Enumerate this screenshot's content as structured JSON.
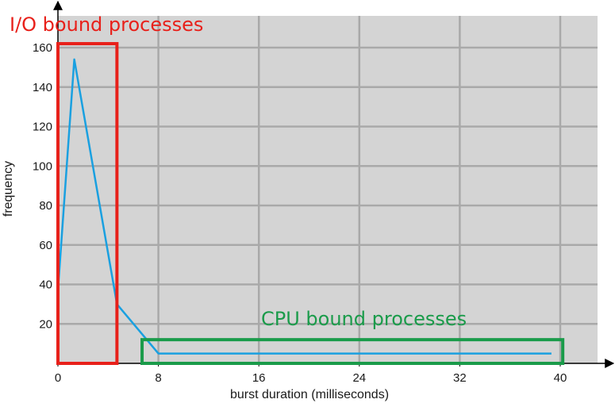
{
  "chart_data": {
    "type": "line",
    "xlabel": "burst duration (milliseconds)",
    "ylabel": "frequency",
    "xlim": [
      0,
      40
    ],
    "ylim": [
      0,
      160
    ],
    "x_ticks": [
      0,
      8,
      16,
      24,
      32,
      40
    ],
    "y_ticks": [
      20,
      40,
      60,
      80,
      100,
      120,
      140,
      160
    ],
    "grid": true,
    "series": [
      {
        "points": [
          [
            0,
            37
          ],
          [
            1.3,
            154
          ],
          [
            4.7,
            30
          ],
          [
            8,
            5
          ],
          [
            39.3,
            5
          ]
        ],
        "color": "#1aa0e0"
      }
    ],
    "annotations": [
      {
        "text": "I/O bound processes",
        "color": "#e8201a",
        "box_x": [
          0,
          4.7
        ],
        "box_y": [
          0,
          162
        ]
      },
      {
        "text": "CPU bound processes",
        "color": "#1a9b4a",
        "box_x": [
          6.7,
          40.2
        ],
        "box_y": [
          0,
          12
        ]
      }
    ]
  },
  "colors": {
    "plot_background": "#d4d4d4",
    "grid": "#a9a9a9",
    "axis": "#000000"
  }
}
